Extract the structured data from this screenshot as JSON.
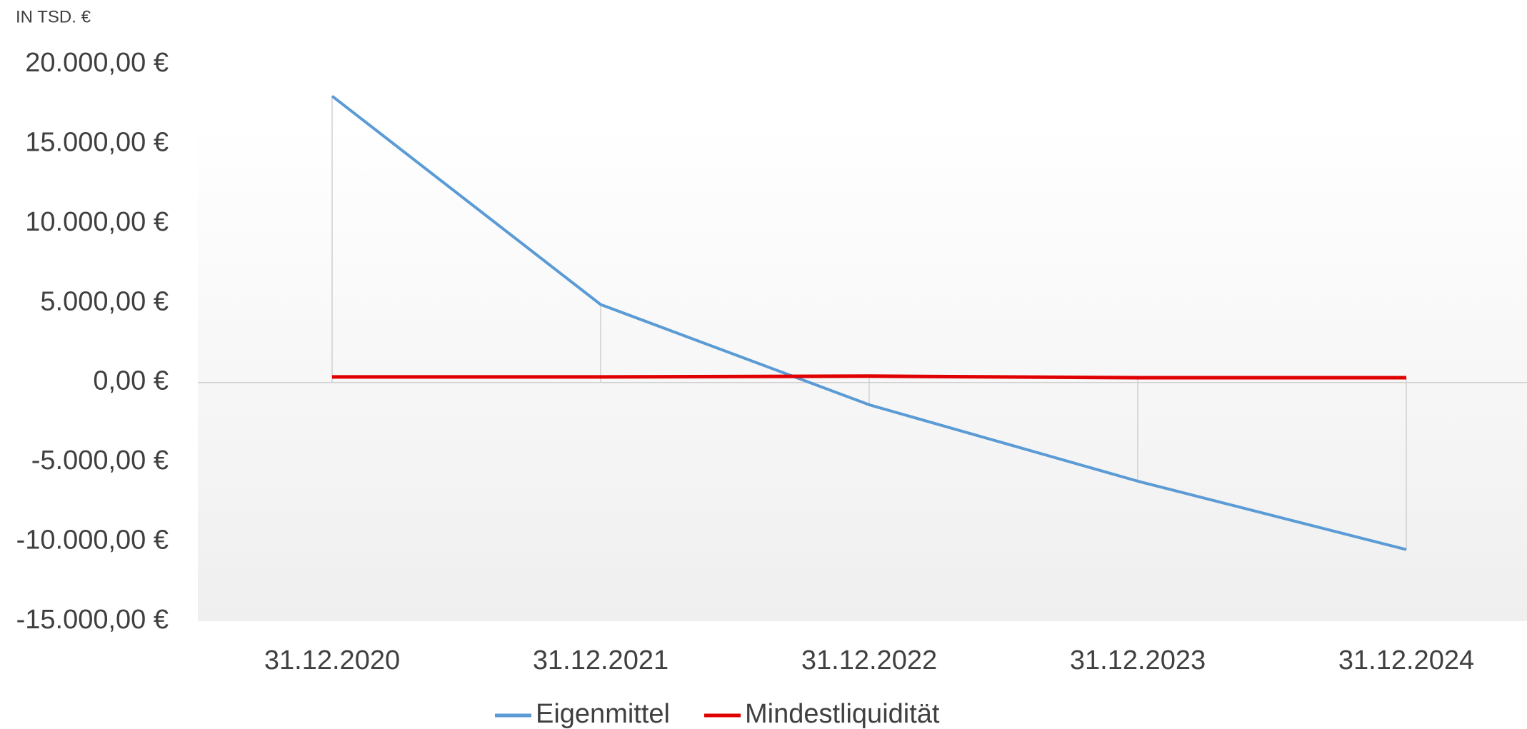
{
  "chart_data": {
    "type": "line",
    "unit_label": "IN TSD. €",
    "categories": [
      "31.12.2020",
      "31.12.2021",
      "31.12.2022",
      "31.12.2023",
      "31.12.2024"
    ],
    "series": [
      {
        "name": "Eigenmittel",
        "color": "#5b9bd5",
        "values": [
          18000,
          4900,
          -1400,
          -6200,
          -10500
        ]
      },
      {
        "name": "Mindestliquidität",
        "color": "#e00000",
        "values": [
          350,
          350,
          400,
          300,
          300
        ]
      }
    ],
    "ylim": [
      -15000,
      20000
    ],
    "yticks": [
      {
        "value": -15000,
        "label": "-15.000,00 €"
      },
      {
        "value": -10000,
        "label": "-10.000,00 €"
      },
      {
        "value": -5000,
        "label": "-5.000,00 €"
      },
      {
        "value": 0,
        "label": "0,00 €"
      },
      {
        "value": 5000,
        "label": "5.000,00 €"
      },
      {
        "value": 10000,
        "label": "10.000,00 €"
      },
      {
        "value": 15000,
        "label": "15.000,00 €"
      },
      {
        "value": 20000,
        "label": "20.000,00 €"
      }
    ],
    "grid": false,
    "drop_lines": true,
    "legend": "bottom"
  }
}
